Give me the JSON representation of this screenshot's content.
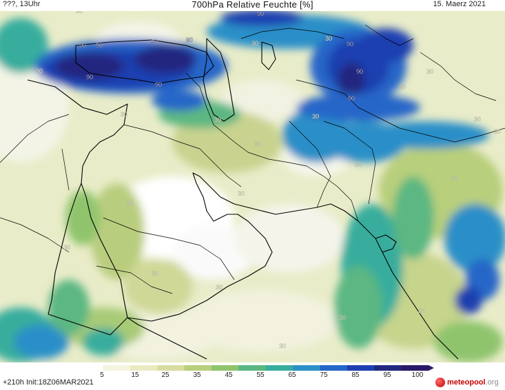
{
  "header": {
    "left": "???, 13Uhr",
    "title": "700hPa Relative Feuchte [%]",
    "right": "15. Maerz 2021"
  },
  "footer": {
    "run": "+210h  Init:18Z06MAR2021",
    "brand_main": "meteopool",
    "brand_tld": ".org"
  },
  "legend": {
    "ticks": [
      "5",
      "15",
      "25",
      "35",
      "45",
      "55",
      "65",
      "75",
      "85",
      "95",
      "100"
    ],
    "colors": [
      "#ffffff",
      "#f4f4df",
      "#ebebc1",
      "#d8dca0",
      "#b8cf7c",
      "#8fc46d",
      "#5bb782",
      "#37ad9d",
      "#2c8fc8",
      "#2566c8",
      "#1f3fb0",
      "#21287f",
      "#2a1868"
    ]
  },
  "map_labels": [
    {
      "text": "90"
    },
    {
      "text": "90"
    },
    {
      "text": "90"
    },
    {
      "text": "90"
    },
    {
      "text": "90"
    },
    {
      "text": "90"
    },
    {
      "text": "90"
    },
    {
      "text": "90"
    },
    {
      "text": "90"
    },
    {
      "text": "90"
    },
    {
      "text": "30"
    },
    {
      "text": "30"
    },
    {
      "text": "30"
    },
    {
      "text": "30"
    },
    {
      "text": "30"
    },
    {
      "text": "30"
    },
    {
      "text": "30"
    },
    {
      "text": "30"
    },
    {
      "text": "30"
    },
    {
      "text": "30"
    },
    {
      "text": "30"
    },
    {
      "text": "30"
    },
    {
      "text": "30"
    },
    {
      "text": "30"
    },
    {
      "text": "30"
    },
    {
      "text": "30"
    },
    {
      "text": "30"
    },
    {
      "text": "30"
    },
    {
      "text": "30"
    },
    {
      "text": "30"
    },
    {
      "text": "30"
    },
    {
      "text": "30"
    }
  ]
}
